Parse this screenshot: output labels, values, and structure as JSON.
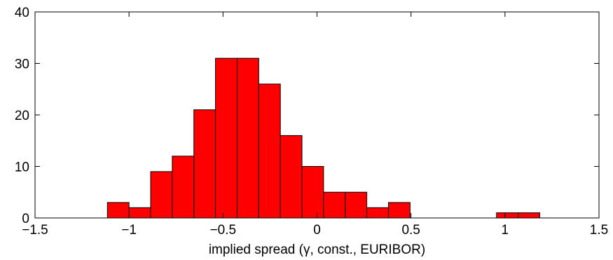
{
  "chart_data": {
    "type": "bar",
    "xlabel": "implied spread (γ, const., EURIBOR)",
    "ylabel": "",
    "title": "",
    "xlim": [
      -1.5,
      1.5
    ],
    "ylim": [
      0,
      40
    ],
    "xticks": [
      -1.5,
      -1,
      -0.5,
      0,
      0.5,
      1,
      1.5
    ],
    "xtick_labels": [
      "−1.5",
      "−1",
      "−0.5",
      "0",
      "0.5",
      "1",
      "1.5"
    ],
    "yticks": [
      0,
      10,
      20,
      30,
      40
    ],
    "ytick_labels": [
      "0",
      "10",
      "20",
      "30",
      "40"
    ],
    "bar_color": "#ff0000",
    "bins": [
      {
        "from": -1.115,
        "to": -1.0,
        "count": 3
      },
      {
        "from": -1.0,
        "to": -0.885,
        "count": 2
      },
      {
        "from": -0.885,
        "to": -0.77,
        "count": 9
      },
      {
        "from": -0.77,
        "to": -0.655,
        "count": 12
      },
      {
        "from": -0.655,
        "to": -0.54,
        "count": 21
      },
      {
        "from": -0.54,
        "to": -0.425,
        "count": 31
      },
      {
        "from": -0.425,
        "to": -0.31,
        "count": 31
      },
      {
        "from": -0.31,
        "to": -0.195,
        "count": 26
      },
      {
        "from": -0.195,
        "to": -0.08,
        "count": 16
      },
      {
        "from": -0.08,
        "to": 0.035,
        "count": 10
      },
      {
        "from": 0.035,
        "to": 0.15,
        "count": 5
      },
      {
        "from": 0.15,
        "to": 0.265,
        "count": 5
      },
      {
        "from": 0.265,
        "to": 0.38,
        "count": 2
      },
      {
        "from": 0.38,
        "to": 0.495,
        "count": 3
      },
      {
        "from": 0.495,
        "to": 0.61,
        "count": 0
      },
      {
        "from": 0.61,
        "to": 0.725,
        "count": 0
      },
      {
        "from": 0.725,
        "to": 0.84,
        "count": 0
      },
      {
        "from": 0.84,
        "to": 0.955,
        "count": 0
      },
      {
        "from": 0.955,
        "to": 1.07,
        "count": 1
      },
      {
        "from": 1.07,
        "to": 1.185,
        "count": 1
      }
    ]
  }
}
